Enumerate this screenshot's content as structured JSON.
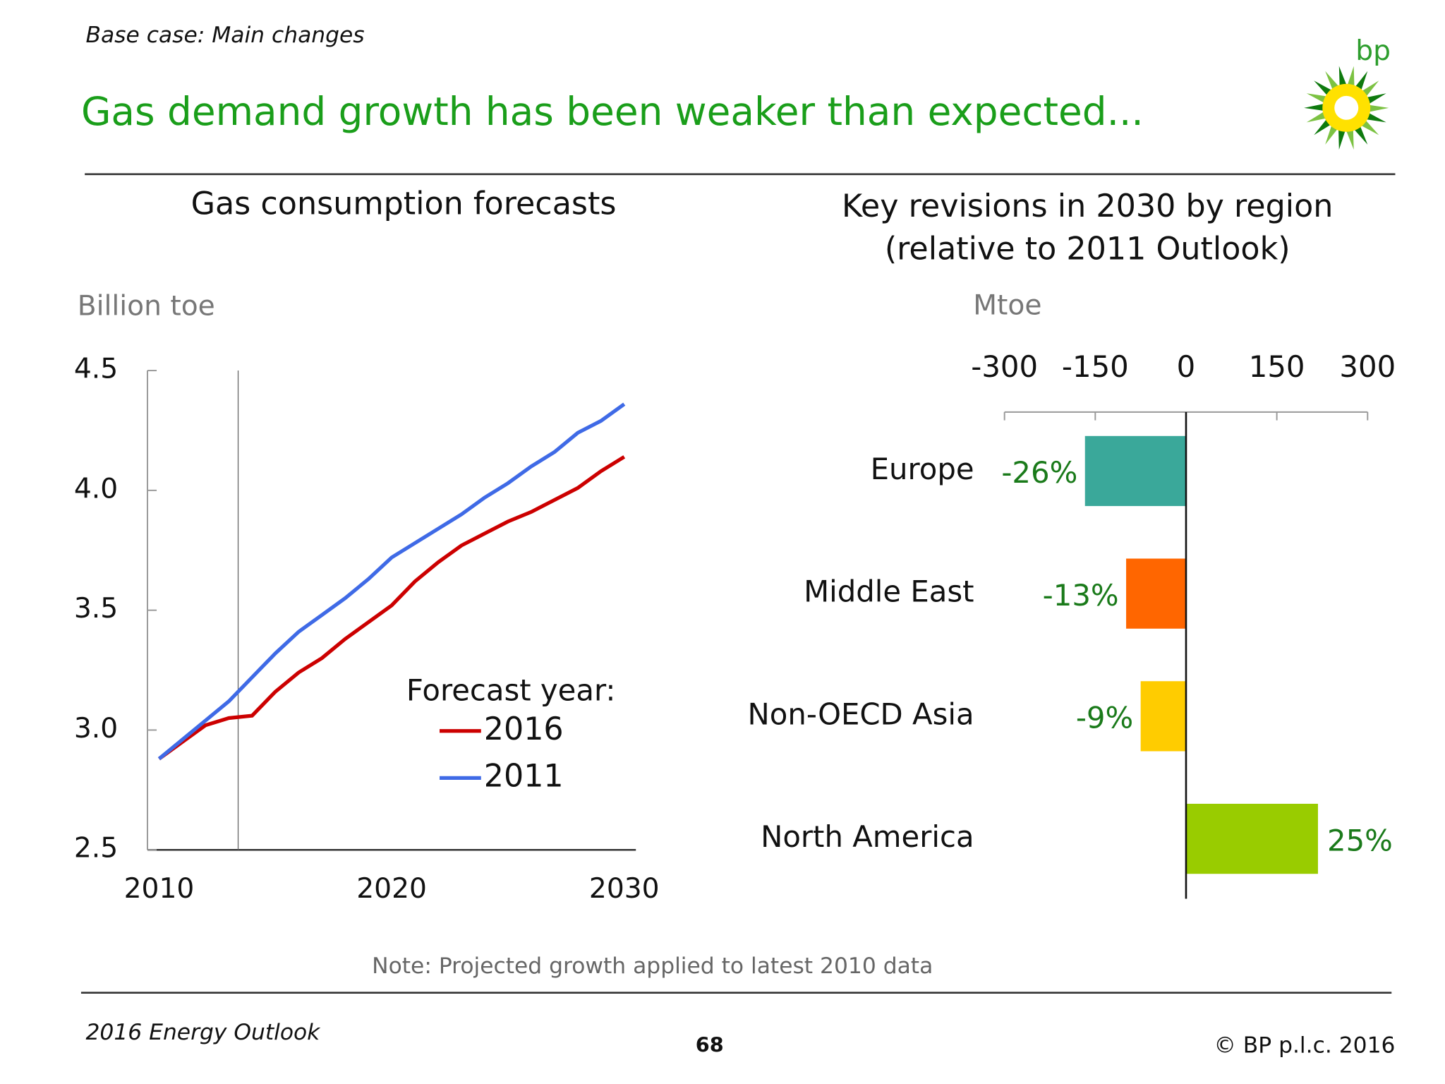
{
  "header": {
    "subtitle": "Base case: Main changes",
    "title": "Gas demand growth has been weaker than expected...",
    "logo": "bp"
  },
  "chart_data": [
    {
      "type": "line",
      "title": "Gas consumption forecasts",
      "y_label": "Billion toe",
      "legend_title": "Forecast year:",
      "x": [
        2010,
        2011,
        2012,
        2013,
        2014,
        2015,
        2016,
        2017,
        2018,
        2019,
        2020,
        2021,
        2022,
        2023,
        2024,
        2025,
        2026,
        2027,
        2028,
        2029,
        2030
      ],
      "series": [
        {
          "name": "2016",
          "color": "#cc0000",
          "values": [
            2.88,
            2.95,
            3.02,
            3.05,
            3.06,
            3.16,
            3.24,
            3.3,
            3.38,
            3.45,
            3.52,
            3.62,
            3.7,
            3.77,
            3.82,
            3.87,
            3.91,
            3.96,
            4.01,
            4.08,
            4.14
          ]
        },
        {
          "name": "2011",
          "color": "#3f6ae6",
          "values": [
            2.88,
            2.96,
            3.04,
            3.12,
            3.22,
            3.32,
            3.41,
            3.48,
            3.55,
            3.63,
            3.72,
            3.78,
            3.84,
            3.9,
            3.97,
            4.03,
            4.1,
            4.16,
            4.24,
            4.29,
            4.36
          ]
        }
      ],
      "xlim": [
        2009.5,
        2030.5
      ],
      "xticks": [
        2010,
        2020,
        2030
      ],
      "ylim": [
        2.5,
        4.5
      ],
      "yticks": [
        {
          "value": 2.5,
          "label": "2.5"
        },
        {
          "value": 3.0,
          "label": "3.0"
        },
        {
          "value": 3.5,
          "label": "3.5"
        },
        {
          "value": 4.0,
          "label": "4.0"
        },
        {
          "value": 4.5,
          "label": "4.5"
        }
      ],
      "marker_x": 2013.4
    },
    {
      "type": "hbar",
      "title": "Key revisions in 2030 by region",
      "subtitle": "(relative to 2011 Outlook)",
      "x_label": "Mtoe",
      "categories": [
        "Europe",
        "Middle East",
        "Non-OECD Asia",
        "North America"
      ],
      "values": [
        -167,
        -99,
        -75,
        218
      ],
      "colors": [
        "#3aa89a",
        "#ff6600",
        "#ffcc00",
        "#99cc00"
      ],
      "revision_labels": [
        "-26%",
        "-13%",
        "-9%",
        "25%"
      ],
      "xlim": [
        -300,
        300
      ],
      "xticks": [
        -300,
        -150,
        0,
        150,
        300
      ]
    }
  ],
  "note": "Note: Projected growth applied to latest 2010 data",
  "footer": {
    "left": "2016 Energy Outlook",
    "page": "68",
    "right": "© BP p.l.c. 2016"
  }
}
